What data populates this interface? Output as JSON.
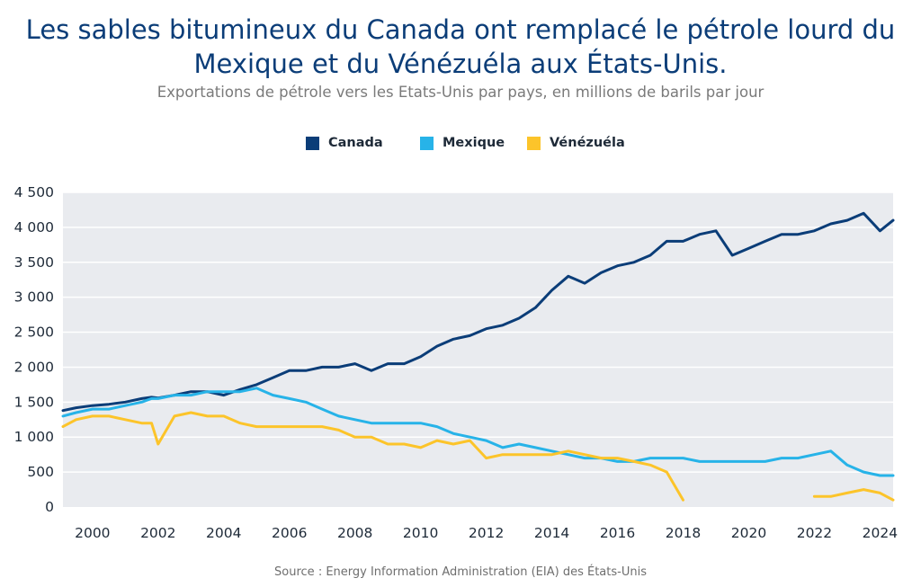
{
  "chart_data": {
    "type": "line",
    "title": "Les sables bitumineux du Canada ont remplacé le pétrole lourd du Mexique et du Vénézuéla aux États-Unis.",
    "title_lines": [
      "Les sables bitumineux du Canada ont remplacé le pétrole lourd du",
      "Mexique et du Vénézuéla aux États-Unis."
    ],
    "subtitle": "Exportations de pétrole vers les Etats-Unis par pays, en millions de barils par jour",
    "xlabel": "",
    "ylabel": "",
    "x_ticks": [
      2000,
      2002,
      2004,
      2006,
      2008,
      2010,
      2012,
      2014,
      2016,
      2018,
      2020,
      2022,
      2024
    ],
    "y_ticks": [
      0,
      500,
      1000,
      1500,
      2000,
      2500,
      3000,
      3500,
      4000,
      4500
    ],
    "y_tick_labels": [
      "0",
      "500",
      "1 000",
      "1 500",
      "2 000",
      "2 500",
      "3 000",
      "3 500",
      "4 000",
      "4 500"
    ],
    "xlim": [
      1999.6,
      2024.9
    ],
    "ylim": [
      0,
      4500
    ],
    "grid": true,
    "legend_position": "top-center",
    "x": [
      1999.6,
      2000.0,
      2000.5,
      2001.0,
      2001.5,
      2002.0,
      2002.3,
      2002.5,
      2003.0,
      2003.5,
      2004.0,
      2004.5,
      2005.0,
      2005.5,
      2006.0,
      2006.5,
      2007.0,
      2007.5,
      2008.0,
      2008.5,
      2009.0,
      2009.5,
      2010.0,
      2010.5,
      2011.0,
      2011.5,
      2012.0,
      2012.5,
      2013.0,
      2013.5,
      2014.0,
      2014.5,
      2015.0,
      2015.5,
      2016.0,
      2016.5,
      2017.0,
      2017.5,
      2018.0,
      2018.5,
      2019.0,
      2019.5,
      2020.0,
      2020.5,
      2021.0,
      2021.5,
      2022.0,
      2022.5,
      2023.0,
      2023.5,
      2024.0,
      2024.5,
      2024.9
    ],
    "series": [
      {
        "name": "Canada",
        "color": "#0b3d78",
        "values": [
          1380,
          1420,
          1450,
          1470,
          1500,
          1550,
          1570,
          1560,
          1600,
          1650,
          1650,
          1600,
          1680,
          1750,
          1850,
          1950,
          1950,
          2000,
          2000,
          2050,
          1950,
          2050,
          2050,
          2150,
          2300,
          2400,
          2450,
          2550,
          2600,
          2700,
          2850,
          3100,
          3300,
          3200,
          3350,
          3450,
          3500,
          3600,
          3800,
          3800,
          3900,
          3950,
          3600,
          3700,
          3800,
          3900,
          3900,
          3950,
          4050,
          4100,
          4200,
          3950,
          4100
        ],
        "dash": "solid"
      },
      {
        "name": "Mexique",
        "color": "#27b3e8",
        "values": [
          1300,
          1350,
          1400,
          1400,
          1450,
          1500,
          1550,
          1550,
          1600,
          1600,
          1650,
          1650,
          1650,
          1700,
          1600,
          1550,
          1500,
          1400,
          1300,
          1250,
          1200,
          1200,
          1200,
          1200,
          1150,
          1050,
          1000,
          950,
          850,
          900,
          850,
          800,
          750,
          700,
          700,
          650,
          650,
          700,
          700,
          700,
          650,
          650,
          650,
          650,
          650,
          700,
          700,
          750,
          800,
          600,
          500,
          450,
          450
        ],
        "dash": "solid"
      },
      {
        "name": "Vénézuéla",
        "color": "#fcc42a",
        "values": [
          1150,
          1250,
          1300,
          1300,
          1250,
          1200,
          1200,
          900,
          1300,
          1350,
          1300,
          1300,
          1200,
          1150,
          1150,
          1150,
          1150,
          1150,
          1100,
          1000,
          1000,
          900,
          900,
          850,
          950,
          900,
          950,
          700,
          750,
          750,
          750,
          750,
          800,
          750,
          700,
          700,
          650,
          600,
          500,
          100,
          null,
          null,
          null,
          null,
          null,
          null,
          null,
          150,
          150,
          200,
          250,
          200,
          100
        ],
        "dash": "solid"
      }
    ]
  },
  "source": "Source : Energy Information Administration (EIA) des États-Unis"
}
